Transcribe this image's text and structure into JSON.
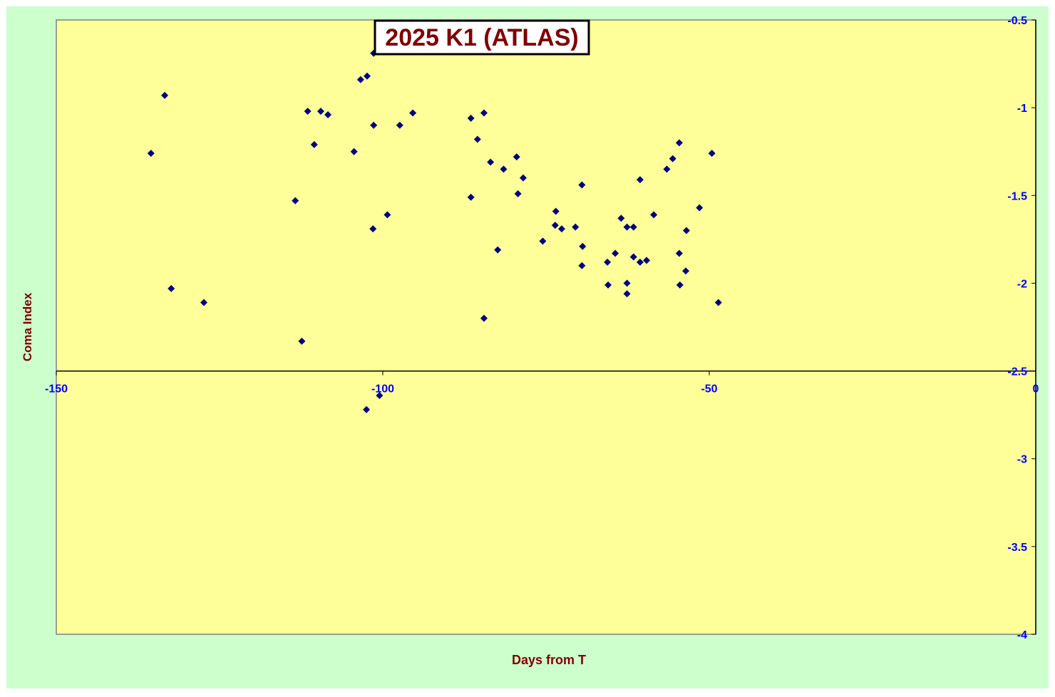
{
  "chart_data": {
    "type": "scatter",
    "title": "2025 K1 (ATLAS)",
    "x_label": "Days from T",
    "y_label": "Coma Index",
    "color": "#000080",
    "x": [
      -135.5,
      -133.4,
      -132.4,
      -127.4,
      -113.4,
      -112.4,
      -111.5,
      -110.5,
      -109.5,
      -108.4,
      -104.4,
      -103.4,
      -102.4,
      -101.4,
      -101.4,
      -101.5,
      -102.5,
      -100.5,
      -99.3,
      -97.4,
      -95.4,
      -86.5,
      -86.5,
      -85.5,
      -84.5,
      -84.5,
      -83.5,
      -82.4,
      -81.5,
      -79.5,
      -79.3,
      -78.5,
      -75.5,
      -73.5,
      -73.6,
      -72.6,
      -70.5,
      -69.5,
      -69.4,
      -69.5,
      -65.6,
      -65.5,
      -64.4,
      -63.5,
      -62.6,
      -61.6,
      -62.6,
      -62.6,
      -61.6,
      -60.6,
      -60.6,
      -59.6,
      -58.5,
      -56.5,
      -55.6,
      -54.6,
      -54.6,
      -54.5,
      -53.6,
      -53.5,
      -51.5,
      -49.6,
      -48.6
    ],
    "values": [
      -1.26,
      -0.93,
      -2.03,
      -2.11,
      -1.53,
      -2.33,
      -1.02,
      -1.21,
      -1.02,
      -1.04,
      -1.25,
      -0.84,
      -0.82,
      -0.69,
      -1.1,
      -1.69,
      -2.72,
      -2.64,
      -1.61,
      -1.1,
      -1.03,
      -1.06,
      -1.51,
      -1.18,
      -1.03,
      -2.2,
      -1.31,
      -1.81,
      -1.35,
      -1.28,
      -1.49,
      -1.4,
      -1.76,
      -1.59,
      -1.67,
      -1.69,
      -1.68,
      -1.44,
      -1.79,
      -1.9,
      -1.88,
      -2.01,
      -1.83,
      -1.63,
      -1.68,
      -1.68,
      -2.0,
      -2.06,
      -1.85,
      -1.88,
      -1.41,
      -1.87,
      -1.61,
      -1.35,
      -1.29,
      -1.2,
      -1.83,
      -2.01,
      -1.93,
      -1.7,
      -1.57,
      -1.26,
      -2.11
    ],
    "xlim": [
      -150,
      0
    ],
    "xticks": [
      -150,
      -100,
      -50,
      0
    ],
    "ylim": [
      -4,
      -0.5
    ],
    "yticks": [
      -0.5,
      -1,
      -1.5,
      -2,
      -2.5,
      -3,
      -3.5,
      -4
    ],
    "x_axis_crosses": -2.5,
    "y_axis_side": "right"
  }
}
